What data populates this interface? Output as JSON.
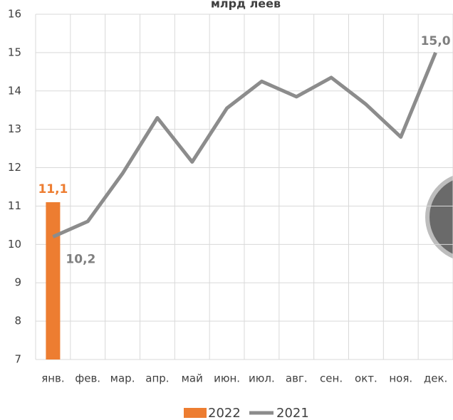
{
  "chart_data": {
    "type": "bar-line",
    "title": "млрд леев",
    "categories": [
      "янв.",
      "фев.",
      "мар.",
      "апр.",
      "май",
      "июн.",
      "июл.",
      "авг.",
      "сен.",
      "окт.",
      "ноя.",
      "дек."
    ],
    "series": [
      {
        "name": "2022",
        "type": "bar",
        "color": "#ed7d31",
        "values": [
          11.1,
          null,
          null,
          null,
          null,
          null,
          null,
          null,
          null,
          null,
          null,
          null
        ],
        "value_labels": [
          "11,1",
          null,
          null,
          null,
          null,
          null,
          null,
          null,
          null,
          null,
          null,
          null
        ]
      },
      {
        "name": "2021",
        "type": "line",
        "color": "#8c8c8c",
        "values": [
          10.2,
          10.6,
          11.85,
          13.3,
          12.15,
          13.55,
          14.25,
          13.85,
          14.35,
          13.65,
          12.8,
          15.0
        ],
        "value_labels": [
          "10,2",
          null,
          null,
          null,
          null,
          null,
          null,
          null,
          null,
          null,
          null,
          "15,0"
        ]
      }
    ],
    "ylim": [
      7,
      16
    ],
    "yticks": [
      7,
      8,
      9,
      10,
      11,
      12,
      13,
      14,
      15,
      16
    ],
    "grid": true,
    "legend": "bottom"
  }
}
